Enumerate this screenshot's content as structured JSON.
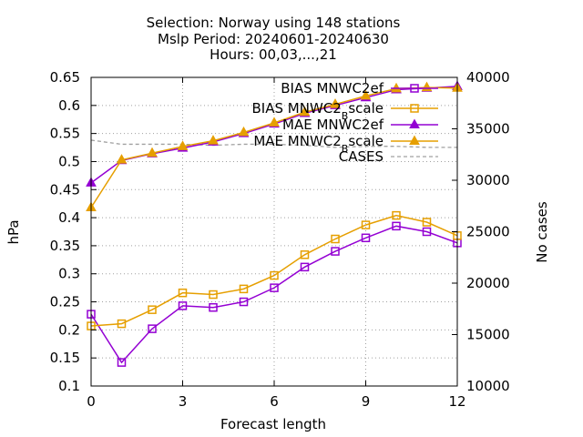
{
  "chart_data": {
    "type": "line",
    "title_lines": [
      "Selection: Norway using   148 stations",
      "Mslp   Period: 20240601-20240630",
      "Hours: 00,03,...,21"
    ],
    "xlabel": "Forecast length",
    "ylabel": "hPa",
    "y2label": "No cases",
    "xlim": [
      0,
      12
    ],
    "ylim": [
      0.1,
      0.65
    ],
    "y2lim": [
      10000,
      40000
    ],
    "xticks": [
      0,
      3,
      6,
      9,
      12
    ],
    "yticks": [
      0.1,
      0.15,
      0.2,
      0.25,
      0.3,
      0.35,
      0.4,
      0.45,
      0.5,
      0.55,
      0.6,
      0.65
    ],
    "y2ticks": [
      10000,
      15000,
      20000,
      25000,
      30000,
      35000,
      40000
    ],
    "grid": true,
    "legend_position": "top-right",
    "x": [
      0,
      1,
      2,
      3,
      4,
      5,
      6,
      7,
      8,
      9,
      10,
      11,
      12
    ],
    "series": [
      {
        "name": "BIAS MNWC2_ef",
        "legend_main": "BIAS MNWC2",
        "legend_sub": "",
        "legend_tail": "ef",
        "axis": "y1",
        "color": "#9400d3",
        "marker": "square",
        "values": [
          0.228,
          0.142,
          0.202,
          0.243,
          0.24,
          0.25,
          0.275,
          0.312,
          0.34,
          0.364,
          0.385,
          0.375,
          0.355
        ]
      },
      {
        "name": "BIAS MNWC2_Bscale",
        "legend_main": "BIAS MNWC2",
        "legend_sub": "B",
        "legend_tail": "scale",
        "axis": "y1",
        "color": "#e69f00",
        "marker": "square",
        "values": [
          0.207,
          0.211,
          0.236,
          0.266,
          0.263,
          0.273,
          0.297,
          0.334,
          0.362,
          0.387,
          0.404,
          0.392,
          0.368
        ]
      },
      {
        "name": "MAE MNWC2_ef",
        "legend_main": "MAE MNWC2",
        "legend_sub": "",
        "legend_tail": "ef",
        "axis": "y1",
        "color": "#9400d3",
        "marker": "triangle",
        "values": [
          0.462,
          0.502,
          0.514,
          0.524,
          0.535,
          0.55,
          0.567,
          0.586,
          0.6,
          0.614,
          0.628,
          0.631,
          0.634
        ]
      },
      {
        "name": "MAE MNWC2_Bscale",
        "legend_main": "MAE MNWC2",
        "legend_sub": "B",
        "legend_tail": "scale",
        "axis": "y1",
        "color": "#e69f00",
        "marker": "triangle",
        "values": [
          0.418,
          0.503,
          0.515,
          0.527,
          0.537,
          0.552,
          0.569,
          0.588,
          0.602,
          0.617,
          0.63,
          0.632,
          0.631
        ]
      },
      {
        "name": "CASES",
        "legend_main": "CASES",
        "legend_sub": "",
        "legend_tail": "",
        "axis": "y2",
        "color": "#a0a0a0",
        "marker": "none",
        "dashed": true,
        "values": [
          33900,
          33500,
          33500,
          33500,
          33400,
          33500,
          33500,
          33400,
          33200,
          33300,
          33300,
          33200,
          33200
        ]
      }
    ]
  }
}
